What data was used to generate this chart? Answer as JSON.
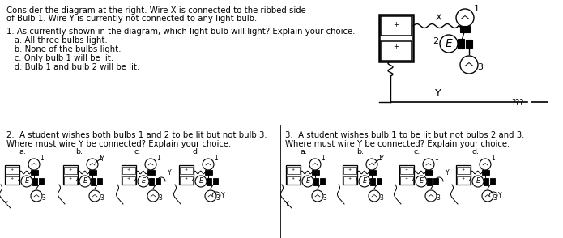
{
  "bg_color": "#ffffff",
  "text_color": "#000000",
  "fig_width": 6.95,
  "fig_height": 2.94,
  "dpi": 100,
  "top_text_line1": "Consider the diagram at the right. Wire X is connected to the ribbed side",
  "top_text_line2": "of Bulb 1. Wire Y is currently not connected to any light bulb.",
  "q1_lines": [
    "1. As currently shown in the diagram, which light bulb will light? Explain your choice.",
    "   a. All three bulbs light.",
    "   b. None of the bulbs light.",
    "   c. Only bulb 1 will be lit.",
    "   d. Bulb 1 and bulb 2 will be lit."
  ],
  "q2_line1": "2.  A student wishes both bulbs 1 and 2 to be lit but not bulb 3.",
  "q2_line2": "Where must wire Y be connected? Explain your choice.",
  "q3_line1": "3.  A student wishes bulb 1 to be lit but not bulbs 2 and 3.",
  "q3_line2": "Where must wire Y be connected? Explain your choice.",
  "choices": [
    "a.",
    "b.",
    "c.",
    "d."
  ],
  "font_size": 7.3,
  "font_size_choice": 6.8
}
